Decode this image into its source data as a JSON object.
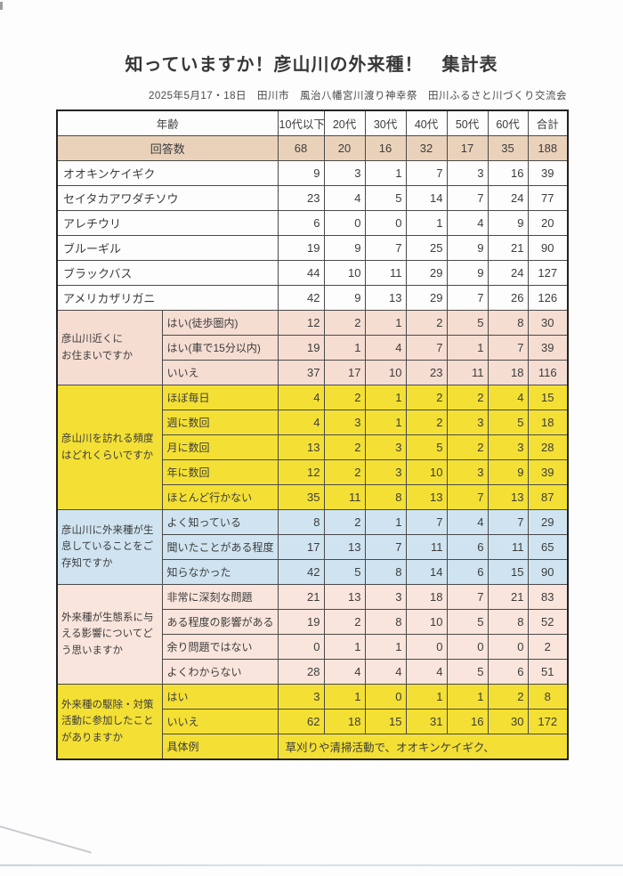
{
  "page": {
    "title": "知っていますか！彦山川の外来種！　集計表",
    "subtitle": "2025年5月17・18日　田川市　風治八幡宮川渡り神幸祭　田川ふるさと川づくり交流会"
  },
  "colors": {
    "respondents_row": "#ead2ba",
    "residence_group": "#f6ddd2",
    "impact_group": "#f9e5dc",
    "frequency_group": "#f4e034",
    "awareness_group": "#cfe4f0",
    "border": "#4a4a4a",
    "text": "#3c3c3c"
  },
  "table": {
    "header": {
      "label": "年齢",
      "columns": [
        "10代以下",
        "20代",
        "30代",
        "40代",
        "50代",
        "60代",
        "合計"
      ]
    },
    "respondents": {
      "label": "回答数",
      "values": [
        68,
        20,
        16,
        32,
        17,
        35,
        188
      ]
    },
    "species_rows": [
      {
        "label": "オオキンケイギク",
        "values": [
          9,
          3,
          1,
          7,
          3,
          16,
          39
        ]
      },
      {
        "label": "セイタカアワダチソウ",
        "values": [
          23,
          4,
          5,
          14,
          7,
          24,
          77
        ]
      },
      {
        "label": "アレチウリ",
        "values": [
          6,
          0,
          0,
          1,
          4,
          9,
          20
        ]
      },
      {
        "label": "ブルーギル",
        "values": [
          19,
          9,
          7,
          25,
          9,
          21,
          90
        ]
      },
      {
        "label": "ブラックバス",
        "values": [
          44,
          10,
          11,
          29,
          9,
          24,
          127
        ]
      },
      {
        "label": "アメリカザリガニ",
        "values": [
          42,
          9,
          13,
          29,
          7,
          26,
          126
        ]
      }
    ],
    "question_groups": [
      {
        "question": "彦山川近くに\nお住まいですか",
        "bg": "pink",
        "rows": [
          {
            "label": "はい(徒歩圏内)",
            "values": [
              12,
              2,
              1,
              2,
              5,
              8,
              30
            ]
          },
          {
            "label": "はい(車で15分以内)",
            "values": [
              19,
              1,
              4,
              7,
              1,
              7,
              39
            ]
          },
          {
            "label": "いいえ",
            "values": [
              37,
              17,
              10,
              23,
              11,
              18,
              116
            ]
          }
        ]
      },
      {
        "question": "彦山川を訪れる頻度\nはどれくらいですか",
        "bg": "yellow",
        "rows": [
          {
            "label": "ほぼ毎日",
            "values": [
              4,
              2,
              1,
              2,
              2,
              4,
              15
            ]
          },
          {
            "label": "週に数回",
            "values": [
              4,
              3,
              1,
              2,
              3,
              5,
              18
            ]
          },
          {
            "label": "月に数回",
            "values": [
              13,
              2,
              3,
              5,
              2,
              3,
              28
            ]
          },
          {
            "label": "年に数回",
            "values": [
              12,
              2,
              3,
              10,
              3,
              9,
              39
            ]
          },
          {
            "label": "ほとんど行かない",
            "values": [
              35,
              11,
              8,
              13,
              7,
              13,
              87
            ]
          }
        ]
      },
      {
        "question": "彦山川に外来種が生\n息していることをご\n存知ですか",
        "bg": "blue",
        "rows": [
          {
            "label": "よく知っている",
            "values": [
              8,
              2,
              1,
              7,
              4,
              7,
              29
            ]
          },
          {
            "label": "聞いたことがある程度",
            "values": [
              17,
              13,
              7,
              11,
              6,
              11,
              65
            ]
          },
          {
            "label": "知らなかった",
            "values": [
              42,
              5,
              8,
              14,
              6,
              15,
              90
            ]
          }
        ]
      },
      {
        "question": "外来種が生態系に与\nえる影響についてど\nう思いますか",
        "bg": "lpink",
        "rows": [
          {
            "label": "非常に深刻な問題",
            "values": [
              21,
              13,
              3,
              18,
              7,
              21,
              83
            ]
          },
          {
            "label": "ある程度の影響がある",
            "values": [
              19,
              2,
              8,
              10,
              5,
              8,
              52
            ]
          },
          {
            "label": "余り問題ではない",
            "values": [
              0,
              1,
              1,
              0,
              0,
              0,
              2
            ]
          },
          {
            "label": "よくわからない",
            "values": [
              28,
              4,
              4,
              4,
              5,
              6,
              51
            ]
          }
        ]
      },
      {
        "question": "外来種の駆除・対策\n活動に参加したこと\nがありますか",
        "bg": "yellow",
        "rows": [
          {
            "label": "はい",
            "values": [
              3,
              1,
              0,
              1,
              1,
              2,
              8
            ]
          },
          {
            "label": "いいえ",
            "values": [
              62,
              18,
              15,
              31,
              16,
              30,
              172
            ]
          },
          {
            "label": "具体例",
            "note": "草刈りや清掃活動で、オオキンケイギク、"
          }
        ]
      }
    ]
  }
}
